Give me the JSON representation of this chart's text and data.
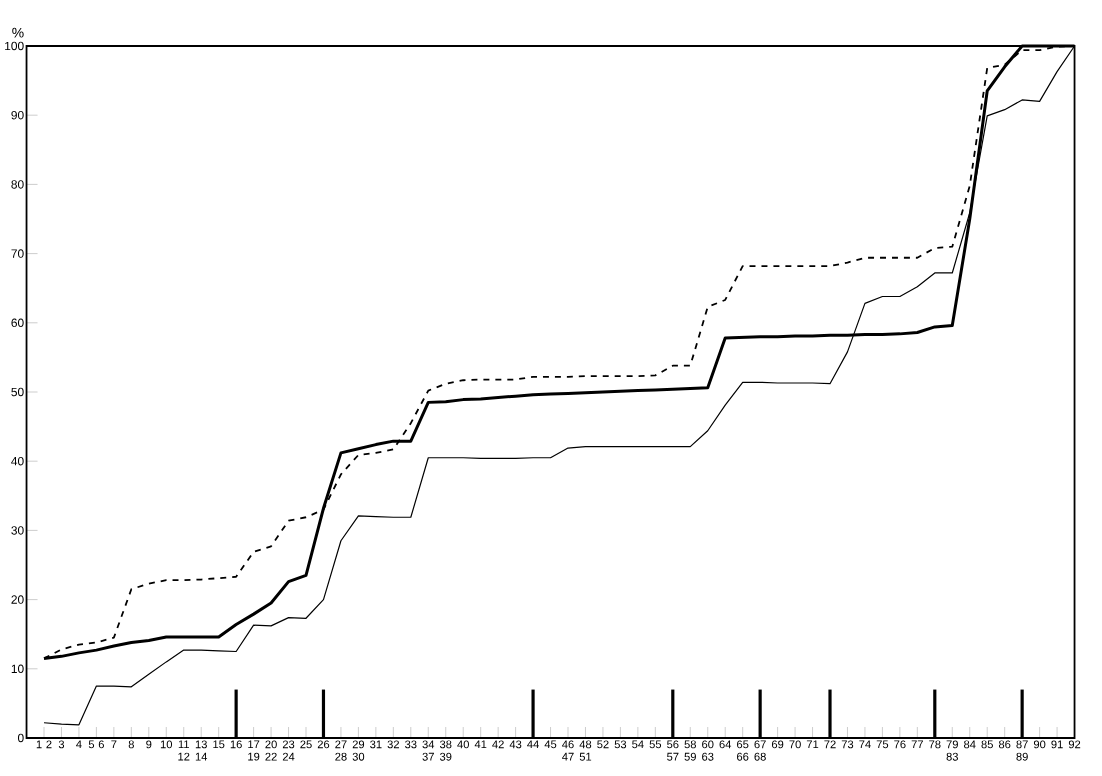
{
  "chart_data": {
    "type": "line",
    "ylabel": "%",
    "categories": [
      "1 2",
      "3",
      "4",
      "5 6",
      "7",
      "8",
      "9",
      "10",
      "11 12",
      "13 14",
      "15",
      "16",
      "17 19",
      "20 22",
      "23 24",
      "25",
      "26",
      "27 28",
      "29 30",
      "31",
      "32",
      "33",
      "34 37",
      "38 39",
      "40",
      "41",
      "42",
      "43",
      "44",
      "45",
      "46 47",
      "48 51",
      "52",
      "53",
      "54",
      "55",
      "56 57",
      "58 59",
      "60 63",
      "64",
      "65 66",
      "67 68",
      "69",
      "70",
      "71",
      "72",
      "73",
      "74",
      "75",
      "76",
      "77",
      "78",
      "79 83",
      "84",
      "85",
      "86",
      "87 89",
      "90",
      "91",
      "92"
    ],
    "series": [
      {
        "color": "#000000",
        "line_style": "solid",
        "values": [
          11.5,
          11.8,
          12.3,
          12.7,
          13.3,
          13.8,
          14.1,
          14.6,
          14.6,
          14.6,
          14.6,
          16.4,
          17.9,
          19.5,
          22.6,
          23.5,
          33.2,
          41.2,
          41.8,
          42.4,
          42.9,
          42.9,
          48.5,
          48.6,
          48.9,
          49.0,
          49.2,
          49.4,
          49.6,
          49.7,
          49.8,
          49.9,
          50.0,
          50.1,
          50.2,
          50.3,
          50.4,
          50.5,
          50.6,
          57.8,
          57.9,
          58.0,
          58.0,
          58.1,
          58.1,
          58.2,
          58.2,
          58.3,
          58.3,
          58.4,
          58.6,
          59.4,
          59.6,
          75,
          93.5,
          97,
          100,
          100,
          100,
          100
        ]
      },
      {
        "color": "#000000",
        "line_style": "solid",
        "values": [
          2.2,
          2.0,
          1.9,
          7.5,
          7.5,
          7.4,
          9.2,
          11.0,
          12.7,
          12.7,
          12.6,
          12.5,
          16.3,
          16.2,
          17.4,
          17.3,
          20,
          28.5,
          32.1,
          32.0,
          31.9,
          31.9,
          40.5,
          40.5,
          40.5,
          40.4,
          40.4,
          40.4,
          40.5,
          40.5,
          41.9,
          42.1,
          42.1,
          42.1,
          42.1,
          42.1,
          42.1,
          42.1,
          44.4,
          48.1,
          51.4,
          51.4,
          51.3,
          51.3,
          51.3,
          51.2,
          55.8,
          62.8,
          63.8,
          63.8,
          65.2,
          67.2,
          67.2,
          75.9,
          89.9,
          90.8,
          92.2,
          92.0,
          96.3,
          100
        ]
      },
      {
        "color": "#000000",
        "line_style": "dashed",
        "values": [
          11.5,
          12.8,
          13.5,
          13.8,
          14.5,
          21.5,
          22.3,
          22.8,
          22.8,
          22.9,
          23.1,
          23.3,
          26.9,
          27.7,
          31.4,
          31.9,
          33,
          38.1,
          40.9,
          41.2,
          41.7,
          45.5,
          50.2,
          51.2,
          51.7,
          51.8,
          51.8,
          51.8,
          52.2,
          52.2,
          52.2,
          52.3,
          52.3,
          52.3,
          52.3,
          52.4,
          53.8,
          53.8,
          62.3,
          63.3,
          68.2,
          68.2,
          68.2,
          68.2,
          68.2,
          68.2,
          68.7,
          69.4,
          69.4,
          69.4,
          69.4,
          70.8,
          71.0,
          79.8,
          96.8,
          97.3,
          99.4,
          99.4,
          99.9,
          100
        ]
      },
      {
        "type": "bar",
        "color": "#000000",
        "values": [
          null,
          null,
          null,
          null,
          null,
          null,
          null,
          null,
          null,
          null,
          null,
          7,
          null,
          null,
          null,
          null,
          7,
          null,
          null,
          null,
          null,
          null,
          null,
          null,
          null,
          null,
          null,
          null,
          7,
          null,
          null,
          null,
          null,
          null,
          null,
          null,
          7,
          null,
          null,
          null,
          null,
          7,
          null,
          null,
          null,
          7,
          null,
          null,
          null,
          null,
          null,
          7,
          null,
          null,
          null,
          null,
          7,
          null,
          null,
          null
        ]
      }
    ],
    "ylim": [
      0,
      100
    ],
    "yticks": [
      0,
      10,
      20,
      30,
      40,
      50,
      60,
      70,
      80,
      90,
      100
    ],
    "grid": false,
    "marker": "none"
  }
}
